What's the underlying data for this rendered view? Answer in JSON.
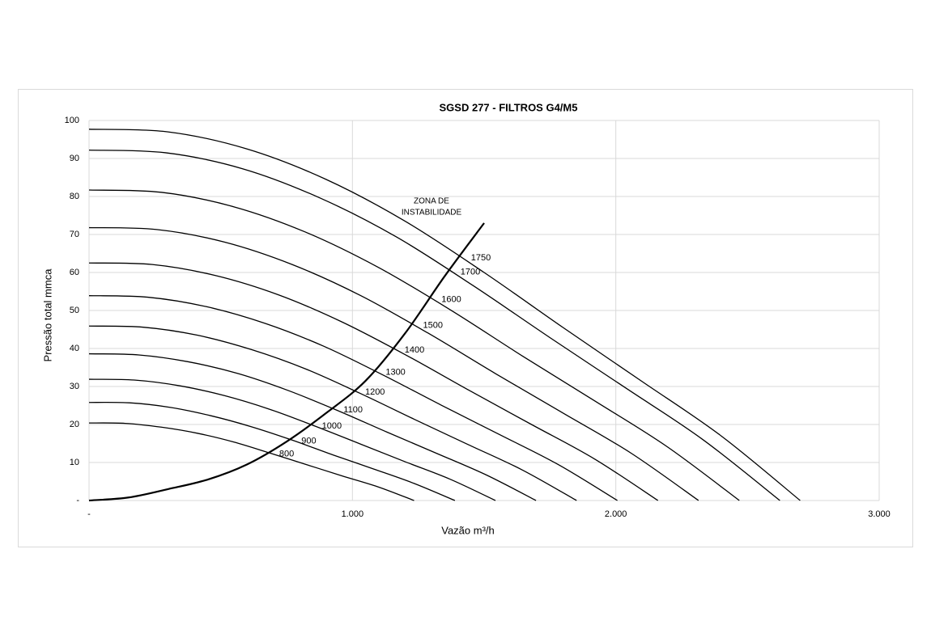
{
  "chart_data": {
    "type": "line",
    "title": "SGSD 277 -  FILTROS G4/M5",
    "x_label": "Vazão m³/h",
    "y_label": "Pressão total mmca",
    "xlim": [
      0,
      3000
    ],
    "ylim": [
      0,
      100
    ],
    "xticks": [
      {
        "value": 0,
        "label": "-"
      },
      {
        "value": 1000,
        "label": "1.000"
      },
      {
        "value": 2000,
        "label": "2.000"
      },
      {
        "value": 3000,
        "label": "3.000"
      }
    ],
    "yticks": [
      {
        "value": 0,
        "label": "-"
      },
      10,
      20,
      30,
      40,
      50,
      60,
      70,
      80,
      90,
      100
    ],
    "grid": true,
    "series": [
      {
        "name": "800",
        "color": "#000000",
        "x": [
          0,
          137,
          274,
          411,
          549,
          686,
          823,
          960,
          1097,
          1234
        ],
        "values": [
          20.4,
          20.3,
          19.3,
          17.7,
          15.4,
          12.5,
          9.5,
          6.5,
          3.6,
          0
        ]
      },
      {
        "name": "900",
        "color": "#000000",
        "x": [
          0,
          154,
          309,
          463,
          617,
          771,
          926,
          1080,
          1234,
          1389
        ],
        "values": [
          25.8,
          25.7,
          24.5,
          22.3,
          19.4,
          15.9,
          12.0,
          8.3,
          4.5,
          0
        ]
      },
      {
        "name": "1000",
        "color": "#000000",
        "x": [
          0,
          171,
          343,
          514,
          686,
          857,
          1029,
          1200,
          1371,
          1543
        ],
        "values": [
          31.9,
          31.7,
          30.2,
          27.6,
          24.0,
          19.6,
          14.9,
          10.2,
          5.6,
          0
        ]
      },
      {
        "name": "1100",
        "color": "#000000",
        "x": [
          0,
          189,
          377,
          566,
          754,
          943,
          1131,
          1320,
          1509,
          1697
        ],
        "values": [
          38.6,
          38.3,
          36.5,
          33.4,
          29.0,
          23.7,
          18.0,
          12.4,
          6.7,
          0
        ]
      },
      {
        "name": "1200",
        "color": "#000000",
        "x": [
          0,
          206,
          411,
          617,
          823,
          1029,
          1234,
          1440,
          1646,
          1851
        ],
        "values": [
          45.9,
          45.6,
          43.5,
          39.7,
          34.6,
          28.2,
          21.4,
          14.7,
          8.0,
          0
        ]
      },
      {
        "name": "1300",
        "color": "#000000",
        "x": [
          0,
          223,
          446,
          669,
          891,
          1114,
          1337,
          1560,
          1783,
          2006
        ],
        "values": [
          53.9,
          53.5,
          51.0,
          46.6,
          40.6,
          33.1,
          25.1,
          17.3,
          9.4,
          0
        ]
      },
      {
        "name": "1400",
        "color": "#000000",
        "x": [
          0,
          240,
          480,
          720,
          960,
          1200,
          1440,
          1680,
          1920,
          2160
        ],
        "values": [
          62.5,
          62.1,
          59.2,
          54.1,
          47.0,
          38.4,
          29.1,
          20.0,
          10.9,
          0
        ]
      },
      {
        "name": "1500",
        "color": "#000000",
        "x": [
          0,
          257,
          514,
          771,
          1029,
          1286,
          1543,
          1800,
          2057,
          2314
        ],
        "values": [
          71.8,
          71.3,
          68.0,
          62.1,
          54.0,
          44.1,
          33.4,
          23.0,
          12.5,
          0
        ]
      },
      {
        "name": "1600",
        "color": "#000000",
        "x": [
          0,
          274,
          549,
          823,
          1097,
          1371,
          1646,
          1920,
          2194,
          2469
        ],
        "values": [
          81.7,
          81.1,
          77.3,
          70.6,
          61.4,
          50.2,
          38.0,
          26.2,
          14.2,
          0
        ]
      },
      {
        "name": "1700",
        "color": "#000000",
        "x": [
          0,
          291,
          583,
          874,
          1166,
          1457,
          1749,
          2040,
          2331,
          2623
        ],
        "values": [
          92.2,
          91.5,
          87.3,
          79.7,
          69.4,
          56.6,
          42.9,
          29.5,
          16.0,
          0
        ]
      },
      {
        "name": "1750",
        "color": "#000000",
        "x": [
          0,
          300,
          600,
          900,
          1200,
          1500,
          1800,
          2100,
          2400,
          2700
        ],
        "values": [
          97.7,
          97.0,
          92.5,
          84.5,
          73.5,
          60,
          45.5,
          31.3,
          17,
          0
        ]
      }
    ],
    "instability_curve": {
      "label": [
        "ZONA DE",
        "INSTABILIDADE"
      ],
      "color": "#000000",
      "x": [
        0,
        150,
        300,
        450,
        600,
        750,
        900,
        1050,
        1200,
        1350,
        1500
      ],
      "values": [
        0,
        0.8,
        3.0,
        5.5,
        9.5,
        15.5,
        23,
        31.5,
        44,
        59,
        73
      ]
    }
  }
}
